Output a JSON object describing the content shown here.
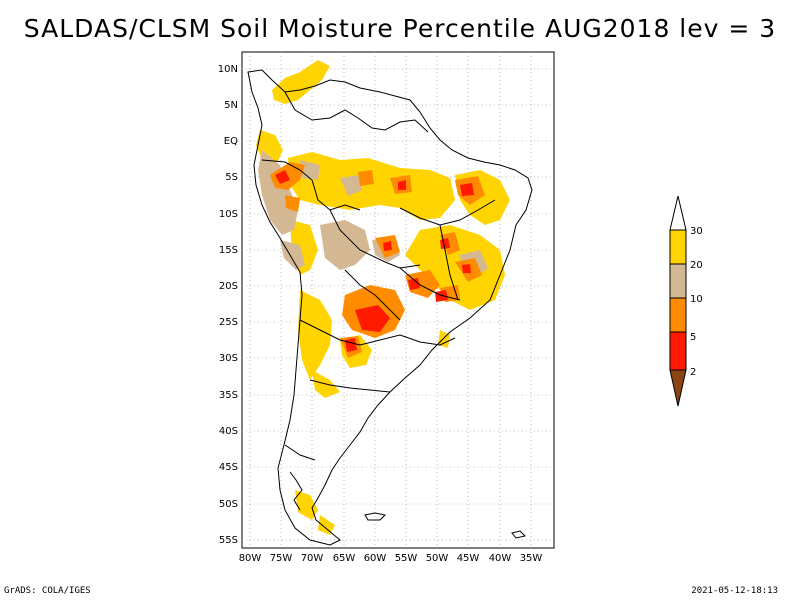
{
  "title": "SALDAS/CLSM Soil Moisture Percentile AUG2018 lev = 3",
  "footer": {
    "left": "GrADS: COLA/IGES",
    "right": "2021-05-12-18:13"
  },
  "axes": {
    "lat_labels": [
      "10N",
      "5N",
      "EQ",
      "5S",
      "10S",
      "15S",
      "20S",
      "25S",
      "30S",
      "35S",
      "40S",
      "45S",
      "50S",
      "55S"
    ],
    "lon_labels": [
      "80W",
      "75W",
      "70W",
      "65W",
      "60W",
      "55W",
      "50W",
      "45W",
      "40W",
      "35W"
    ]
  },
  "legend": {
    "items": [
      {
        "label": "30",
        "color": "#ffd400"
      },
      {
        "label": "20",
        "color": "#d4b894"
      },
      {
        "label": "10",
        "color": "#ff8c00"
      },
      {
        "label": "5",
        "color": "#ff1a00"
      },
      {
        "label": "2",
        "color": "#8b4513"
      }
    ],
    "top_color": "#ffffff"
  },
  "colors": {
    "yellow": "#ffd400",
    "tan": "#d4b894",
    "orange": "#ff8c00",
    "red": "#ff1a00",
    "brown": "#8b4513"
  }
}
